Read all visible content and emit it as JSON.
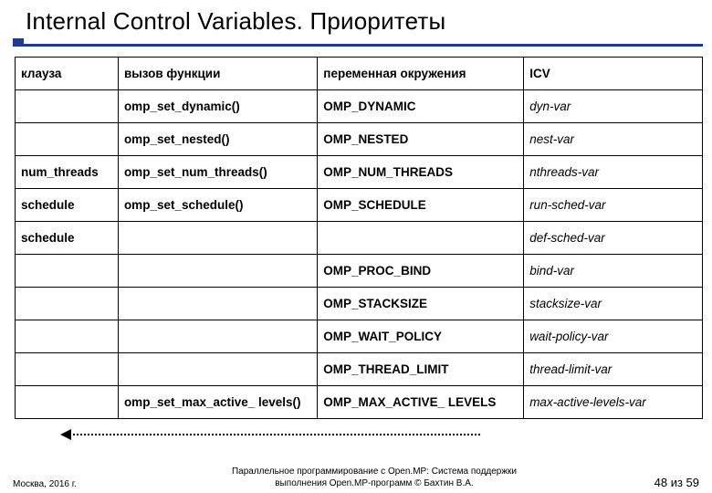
{
  "title": "Internal Control Variables. Приоритеты",
  "columns": [
    "клауза",
    "вызов функции",
    "переменная окружения",
    "ICV"
  ],
  "rows": [
    {
      "c1": "",
      "c2": "omp_set_dynamic()",
      "c3": "OMP_DYNAMIC",
      "c4": "dyn-var"
    },
    {
      "c1": "",
      "c2": "omp_set_nested()",
      "c3": "OMP_NESTED",
      "c4": "nest-var"
    },
    {
      "c1": "num_threads",
      "c2": "omp_set_num_threads()",
      "c3": "OMP_NUM_THREADS",
      "c4": "nthreads-var"
    },
    {
      "c1": "schedule",
      "c2": "omp_set_schedule()",
      "c3": "OMP_SCHEDULE",
      "c4": "run-sched-var"
    },
    {
      "c1": "schedule",
      "c2": "",
      "c3": "",
      "c4": "def-sched-var"
    },
    {
      "c1": "",
      "c2": "",
      "c3": "OMP_PROC_BIND",
      "c4": "bind-var"
    },
    {
      "c1": "",
      "c2": "",
      "c3": "OMP_STACKSIZE",
      "c4": "stacksize-var"
    },
    {
      "c1": "",
      "c2": "",
      "c3": "OMP_WAIT_POLICY",
      "c4": "wait-policy-var"
    },
    {
      "c1": "",
      "c2": "",
      "c3": "OMP_THREAD_LIMIT",
      "c4": "thread-limit-var"
    },
    {
      "c1": "",
      "c2": "omp_set_max_active_ levels()",
      "c3": "OMP_MAX_ACTIVE_ LEVELS",
      "c4": "max-active-levels-var"
    }
  ],
  "footer": {
    "left": "Москва, 2016 г.",
    "center_line1": "Параллельное программирование с Open.MP: Система поддержки",
    "center_line2": "выполнения Open.MP-программ © Бахтин В.А.",
    "right": "48 из 59"
  },
  "colors": {
    "accent": "#1f3b8e",
    "border": "#000000",
    "text": "#000000",
    "background": "#ffffff"
  }
}
